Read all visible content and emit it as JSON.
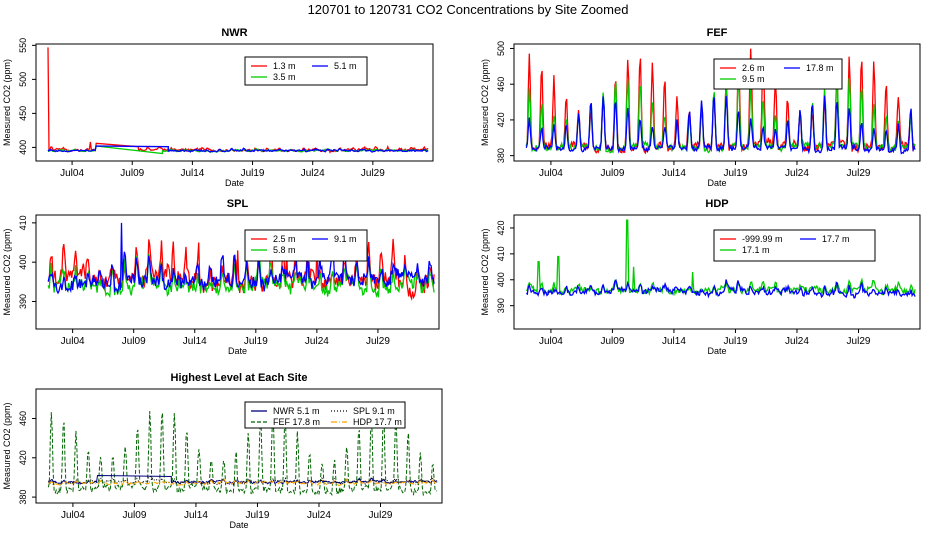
{
  "page_title": "120701  to  120731 CO2 Concentrations by Site Zoomed",
  "colors": {
    "red": "#ff0000",
    "green": "#00cc00",
    "blue": "#0000ff",
    "navy": "#000080",
    "darkgreen": "#006400",
    "orange": "#ffa500",
    "black": "#000000"
  },
  "chart_data": [
    {
      "id": "NWR",
      "type": "line",
      "title": "NWR",
      "xlabel": "Date",
      "ylabel": "Measured CO2 (ppm)",
      "xlim": [
        1,
        34
      ],
      "ylim": [
        380,
        552
      ],
      "x_ticks": [
        {
          "x": 4,
          "label": "Jul04"
        },
        {
          "x": 9,
          "label": "Jul09"
        },
        {
          "x": 14,
          "label": "Jul14"
        },
        {
          "x": 19,
          "label": "Jul19"
        },
        {
          "x": 24,
          "label": "Jul24"
        },
        {
          "x": 29,
          "label": "Jul29"
        }
      ],
      "y_ticks": [
        {
          "y": 400,
          "label": "400"
        },
        {
          "y": 450,
          "label": "450"
        },
        {
          "y": 500,
          "label": "500"
        },
        {
          "y": 550,
          "label": "550"
        }
      ],
      "legend": {
        "position": "top-center",
        "entries": [
          {
            "label": "1.3 m",
            "color": "#ff0000"
          },
          {
            "label": "5.1 m",
            "color": "#0000ff"
          },
          {
            "label": "3.5 m",
            "color": "#00cc00"
          }
        ]
      },
      "series": [
        {
          "name": "1.3 m",
          "color": "#ff0000",
          "base": 396,
          "amp": 3,
          "noise": 3,
          "spikes": [
            [
              2.0,
              547
            ],
            [
              5.5,
              408
            ]
          ],
          "gaps": [
            [
              6.0,
              9.5,
              406,
              401
            ]
          ]
        },
        {
          "name": "3.5 m",
          "color": "#00cc00",
          "base": 395,
          "amp": 2,
          "noise": 2,
          "spikes": [],
          "gaps": [
            [
              6.0,
              11.5,
              402,
              391
            ]
          ]
        },
        {
          "name": "5.1 m",
          "color": "#0000ff",
          "base": 395,
          "amp": 2,
          "noise": 2,
          "spikes": [],
          "gaps": [
            [
              6.0,
              12.0,
              402,
              401
            ]
          ]
        }
      ]
    },
    {
      "id": "FEF",
      "type": "line",
      "title": "FEF",
      "xlabel": "Date",
      "ylabel": "Measured CO2 (ppm)",
      "xlim": [
        1,
        34
      ],
      "ylim": [
        374,
        505
      ],
      "x_ticks": [
        {
          "x": 4,
          "label": "Jul04"
        },
        {
          "x": 9,
          "label": "Jul09"
        },
        {
          "x": 14,
          "label": "Jul14"
        },
        {
          "x": 19,
          "label": "Jul19"
        },
        {
          "x": 24,
          "label": "Jul24"
        },
        {
          "x": 29,
          "label": "Jul29"
        }
      ],
      "y_ticks": [
        {
          "y": 380,
          "label": "380"
        },
        {
          "y": 420,
          "label": "420"
        },
        {
          "y": 460,
          "label": "460"
        },
        {
          "y": 500,
          "label": "500"
        }
      ],
      "legend": {
        "position": "top-right",
        "entries": [
          {
            "label": "2.6 m",
            "color": "#ff0000"
          },
          {
            "label": "17.8 m",
            "color": "#0000ff"
          },
          {
            "label": "9.5 m",
            "color": "#00cc00"
          }
        ]
      },
      "series": [
        {
          "name": "2.6 m",
          "color": "#ff0000",
          "base": 390,
          "amp": 95,
          "noise": 8,
          "spikes": [],
          "gaps": []
        },
        {
          "name": "9.5 m",
          "color": "#00cc00",
          "base": 390,
          "amp": 72,
          "noise": 6,
          "spikes": [],
          "gaps": []
        },
        {
          "name": "17.8 m",
          "color": "#0000ff",
          "base": 388,
          "amp": 55,
          "noise": 5,
          "spikes": [],
          "gaps": []
        }
      ]
    },
    {
      "id": "SPL",
      "type": "line",
      "title": "SPL",
      "xlabel": "Date",
      "ylabel": "Measured CO2 (ppm)",
      "xlim": [
        1,
        34
      ],
      "ylim": [
        383,
        412
      ],
      "x_ticks": [
        {
          "x": 4,
          "label": "Jul04"
        },
        {
          "x": 9,
          "label": "Jul09"
        },
        {
          "x": 14,
          "label": "Jul14"
        },
        {
          "x": 19,
          "label": "Jul19"
        },
        {
          "x": 24,
          "label": "Jul24"
        },
        {
          "x": 29,
          "label": "Jul29"
        }
      ],
      "y_ticks": [
        {
          "y": 390,
          "label": "390"
        },
        {
          "y": 400,
          "label": "400"
        },
        {
          "y": 410,
          "label": "410"
        }
      ],
      "legend": {
        "position": "top-center",
        "entries": [
          {
            "label": "2.5 m",
            "color": "#ff0000"
          },
          {
            "label": "9.1 m",
            "color": "#0000ff"
          },
          {
            "label": "5.8 m",
            "color": "#00cc00"
          }
        ]
      },
      "series": [
        {
          "name": "2.5 m",
          "color": "#ff0000",
          "base": 395,
          "amp": 8,
          "noise": 4,
          "spikes": [
            [
              14.3,
              405
            ],
            [
              17.5,
              403
            ],
            [
              21.5,
              403
            ],
            [
              24.0,
              404
            ]
          ],
          "gaps": []
        },
        {
          "name": "5.8 m",
          "color": "#00cc00",
          "base": 394,
          "amp": 6,
          "noise": 3,
          "spikes": [],
          "gaps": []
        },
        {
          "name": "9.1 m",
          "color": "#0000ff",
          "base": 395,
          "amp": 6,
          "noise": 3,
          "spikes": [
            [
              8.0,
              410
            ]
          ],
          "gaps": []
        }
      ]
    },
    {
      "id": "HDP",
      "type": "line",
      "title": "HDP",
      "xlabel": "Date",
      "ylabel": "Measured CO2 (ppm)",
      "xlim": [
        1,
        34
      ],
      "ylim": [
        381,
        425
      ],
      "x_ticks": [
        {
          "x": 4,
          "label": "Jul04"
        },
        {
          "x": 9,
          "label": "Jul09"
        },
        {
          "x": 14,
          "label": "Jul14"
        },
        {
          "x": 19,
          "label": "Jul19"
        },
        {
          "x": 24,
          "label": "Jul24"
        },
        {
          "x": 29,
          "label": "Jul29"
        }
      ],
      "y_ticks": [
        {
          "y": 390,
          "label": "390"
        },
        {
          "y": 400,
          "label": "400"
        },
        {
          "y": 410,
          "label": "410"
        },
        {
          "y": 420,
          "label": "420"
        }
      ],
      "legend": {
        "position": "top-right",
        "entries": [
          {
            "label": "-999.99 m",
            "color": "#ff0000"
          },
          {
            "label": "17.7 m",
            "color": "#0000ff"
          },
          {
            "label": "17.1 m",
            "color": "#00cc00"
          }
        ]
      },
      "series": [
        {
          "name": "17.1 m",
          "color": "#00cc00",
          "base": 396,
          "amp": 3,
          "noise": 2,
          "spikes": [
            [
              3.0,
              407
            ],
            [
              4.6,
              409
            ],
            [
              10.2,
              423
            ],
            [
              10.7,
              405
            ],
            [
              15.5,
              403
            ]
          ],
          "gaps": []
        },
        {
          "name": "17.7 m",
          "color": "#0000ff",
          "base": 395,
          "amp": 3,
          "noise": 2,
          "spikes": [
            [
              34.0,
              384
            ]
          ],
          "gaps": []
        }
      ]
    },
    {
      "id": "HIGH",
      "type": "line",
      "title": "Highest Level at Each Site",
      "xlabel": "Date",
      "ylabel": "Measured CO2 (ppm)",
      "xlim": [
        1,
        34
      ],
      "ylim": [
        374,
        490
      ],
      "x_ticks": [
        {
          "x": 4,
          "label": "Jul04"
        },
        {
          "x": 9,
          "label": "Jul09"
        },
        {
          "x": 14,
          "label": "Jul14"
        },
        {
          "x": 19,
          "label": "Jul19"
        },
        {
          "x": 24,
          "label": "Jul24"
        },
        {
          "x": 29,
          "label": "Jul29"
        }
      ],
      "y_ticks": [
        {
          "y": 380,
          "label": "380"
        },
        {
          "y": 420,
          "label": "420"
        },
        {
          "y": 460,
          "label": "460"
        }
      ],
      "legend": {
        "position": "top-right",
        "entries": [
          {
            "label": "NWR  5.1 m",
            "color": "#000080",
            "dash": ""
          },
          {
            "label": "SPL  9.1 m",
            "color": "#000000",
            "dash": "1,2"
          },
          {
            "label": "FEF  17.8 m",
            "color": "#006400",
            "dash": "4,2"
          },
          {
            "label": "HDP  17.7 m",
            "color": "#ffa500",
            "dash": "6,2,1,2"
          }
        ]
      },
      "series": [
        {
          "name": "FEF 17.8 m",
          "color": "#006400",
          "dash": "4,2",
          "base": 388,
          "amp": 75,
          "noise": 6,
          "spikes": [],
          "gaps": []
        },
        {
          "name": "NWR 5.1 m",
          "color": "#000080",
          "dash": "",
          "base": 395,
          "amp": 2,
          "noise": 2,
          "spikes": [],
          "gaps": [
            [
              6.0,
              12.0,
              402,
              401
            ]
          ]
        },
        {
          "name": "SPL 9.1 m",
          "color": "#000000",
          "dash": "1,2",
          "base": 395,
          "amp": 4,
          "noise": 3,
          "spikes": [],
          "gaps": []
        },
        {
          "name": "HDP 17.7 m",
          "color": "#ffa500",
          "dash": "6,2,1,2",
          "base": 394,
          "amp": 3,
          "noise": 2,
          "spikes": [],
          "gaps": []
        }
      ]
    }
  ]
}
